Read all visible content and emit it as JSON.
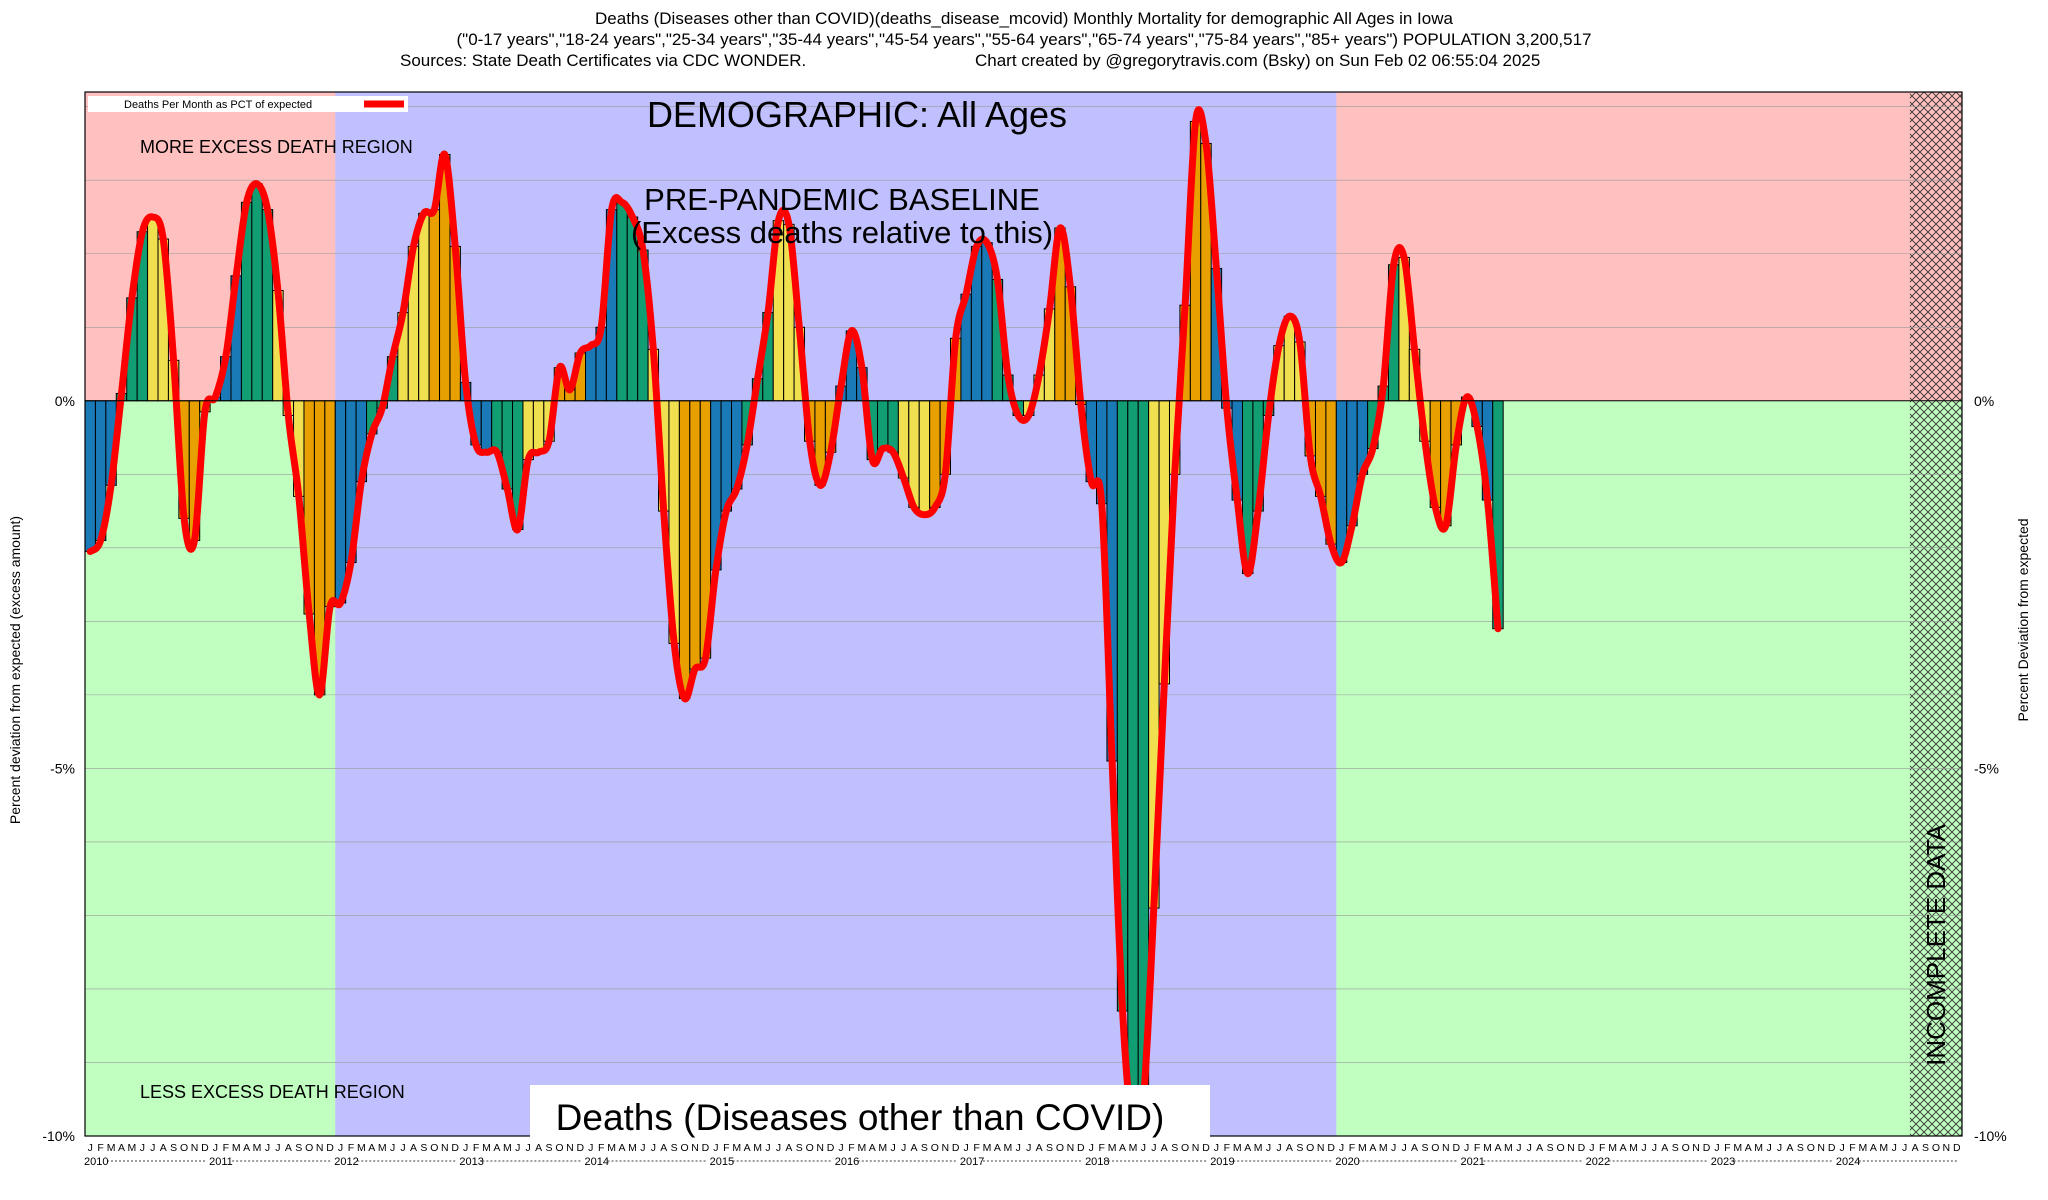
{
  "chart_data": {
    "type": "bar",
    "title_lines": [
      "Deaths (Diseases other than COVID)(deaths_disease_mcovid) Monthly Mortality for demographic All Ages in Iowa",
      "(\"0-17 years\",\"18-24 years\",\"25-34 years\",\"35-44 years\",\"45-54 years\",\"55-64 years\",\"65-74 years\",\"75-84 years\",\"85+ years\") POPULATION 3,200,517",
      "Sources: State Death Certificates via CDC WONDER.",
      "Chart created by @gregorytravis.com (Bsky) on Sun Feb 02 06:55:04 2025"
    ],
    "ylabel_left": "Percent deviation from expected (excess amount)",
    "ylabel_right": "Percent Deviation from expected",
    "legend": "Deaths Per Month as PCT of expected",
    "ylim": [
      -10,
      4.2
    ],
    "ytick_labels": [
      "0%",
      "-5%",
      "-10%"
    ],
    "ytick_values": [
      0,
      -5,
      -10
    ],
    "month_letters": [
      "J",
      "F",
      "M",
      "A",
      "M",
      "J",
      "J",
      "A",
      "S",
      "O",
      "N",
      "D"
    ],
    "years": [
      "2010",
      "2011",
      "2012",
      "2013",
      "2014",
      "2015",
      "2016",
      "2017",
      "2018",
      "2019",
      "2020",
      "2021",
      "2022",
      "2023",
      "2024"
    ],
    "x_start": "2010-01",
    "x_end": "2024-12",
    "annotations": {
      "demographic": "DEMOGRAPHIC: All Ages",
      "baseline_line1": "PRE-PANDEMIC BASELINE",
      "baseline_line2": "(Excess deaths relative to this)",
      "more_region": "MORE EXCESS DEATH REGION",
      "less_region": "LESS EXCESS DEATH REGION",
      "bottom_title": "Deaths (Diseases other than COVID)",
      "incomplete": "INCOMPLETE DATA"
    },
    "regions": {
      "baseline_start": "2012-01",
      "baseline_end": "2019-12",
      "incomplete_start": "2024-08"
    },
    "colors": {
      "more_region": "#ffc0c0",
      "less_region": "#c0ffc0",
      "baseline": "#c0c0ff",
      "line": "#ff0000",
      "bar_palette": [
        "#1a7ab8",
        "#119e72",
        "#f0e050",
        "#e8a000"
      ]
    },
    "values": [
      -2.05,
      -1.9,
      -1.15,
      0.1,
      1.4,
      2.3,
      2.5,
      2.2,
      0.55,
      -1.6,
      -1.9,
      -0.15,
      0.05,
      0.6,
      1.7,
      2.7,
      2.95,
      2.6,
      1.5,
      -0.2,
      -1.3,
      -2.9,
      -4.0,
      -2.8,
      -2.75,
      -2.2,
      -1.1,
      -0.45,
      -0.1,
      0.6,
      1.2,
      2.1,
      2.55,
      2.6,
      3.35,
      2.1,
      0.25,
      -0.6,
      -0.7,
      -0.7,
      -1.2,
      -1.75,
      -0.8,
      -0.7,
      -0.55,
      0.45,
      0.15,
      0.65,
      0.75,
      1.0,
      2.6,
      2.7,
      2.5,
      2.05,
      0.7,
      -1.5,
      -3.3,
      -4.05,
      -3.65,
      -3.5,
      -2.3,
      -1.5,
      -1.2,
      -0.6,
      0.3,
      1.2,
      2.45,
      2.4,
      1.0,
      -0.55,
      -1.15,
      -0.7,
      0.2,
      0.95,
      0.45,
      -0.8,
      -0.65,
      -0.7,
      -1.05,
      -1.45,
      -1.55,
      -1.45,
      -1.0,
      0.85,
      1.45,
      2.1,
      2.15,
      1.65,
      0.35,
      -0.2,
      -0.2,
      0.35,
      1.25,
      2.35,
      1.55,
      -0.05,
      -1.1,
      -1.4,
      -4.9,
      -8.3,
      -9.9,
      -9.5,
      -6.9,
      -3.85,
      -1.0,
      1.3,
      3.8,
      3.5,
      1.8,
      -0.1,
      -1.35,
      -2.35,
      -1.5,
      -0.2,
      0.75,
      1.15,
      0.8,
      -0.75,
      -1.3,
      -1.95,
      -2.2,
      -1.7,
      -1.0,
      -0.65,
      0.2,
      1.85,
      1.95,
      0.7,
      -0.55,
      -1.45,
      -1.7,
      -0.6,
      0.05,
      -0.35,
      -1.35,
      -3.1
    ]
  }
}
